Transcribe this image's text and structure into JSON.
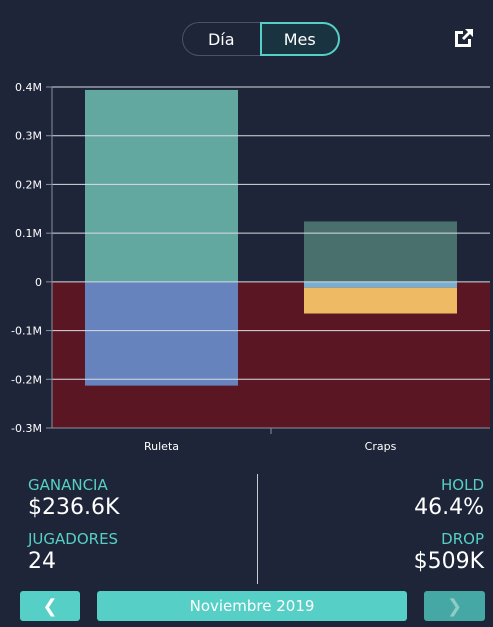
{
  "toggle": {
    "day_label": "Día",
    "month_label": "Mes",
    "selected": "Mes"
  },
  "icons": {
    "popout": "external-link-icon",
    "prev": "chevron-left-icon",
    "next": "chevron-right-icon"
  },
  "colors": {
    "accent": "#56d0c6",
    "background": "#1e2538",
    "negative_zone": "#5a1622",
    "ruleta_pos": "#63a8a0",
    "ruleta_neg": "#6683bd",
    "craps_pos": "#4a706d",
    "craps_neg_blue": "#7aaed0",
    "craps_neg_orange": "#eebb64"
  },
  "chart_data": {
    "type": "bar",
    "stacked": true,
    "categories": [
      "Ruleta",
      "Craps"
    ],
    "y_ticks": [
      "0.4M",
      "0.3M",
      "0.2M",
      "0.1M",
      "0",
      "-0.1M",
      "-0.2M",
      "-0.3M"
    ],
    "ylim": [
      -0.3,
      0.4
    ],
    "grid": true,
    "negative_zone_shaded": true,
    "series": [
      {
        "values": [
          0.394,
          0.124
        ],
        "color_keys": [
          "ruleta_pos",
          "craps_pos"
        ]
      },
      {
        "values": [
          -0.213,
          -0.012
        ],
        "color_keys": [
          "ruleta_neg",
          "craps_neg_blue"
        ]
      },
      {
        "values": [
          0,
          -0.053
        ],
        "color_keys": [
          "ruleta_neg",
          "craps_neg_orange"
        ]
      }
    ]
  },
  "stats": {
    "ganancia_label": "GANANCIA",
    "ganancia_value": "$236.6K",
    "jugadores_label": "JUGADORES",
    "jugadores_value": "24",
    "hold_label": "HOLD",
    "hold_value": "46.4%",
    "drop_label": "DROP",
    "drop_value": "$509K"
  },
  "nav": {
    "prev_label": "❮",
    "period_label": "Noviembre 2019",
    "next_label": "❯"
  }
}
